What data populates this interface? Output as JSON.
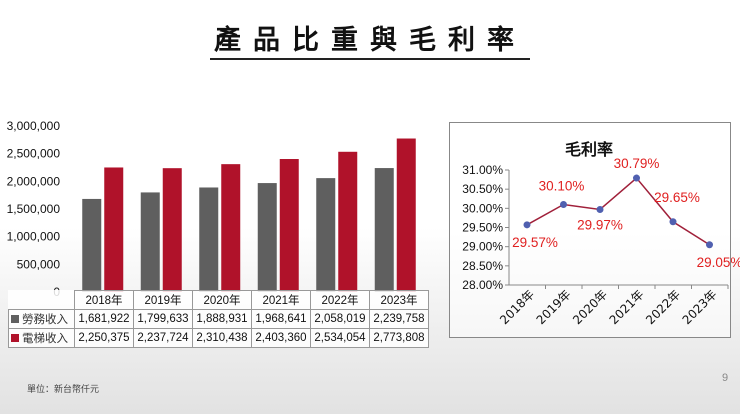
{
  "title": "產品比重與毛利率",
  "unit_note": "單位：新台幣仟元",
  "page_number": "9",
  "chart_data": [
    {
      "type": "bar",
      "categories": [
        "2018年",
        "2019年",
        "2020年",
        "2021年",
        "2022年",
        "2023年"
      ],
      "ylim": [
        0,
        3000000
      ],
      "yticks": [
        "0",
        "500,000",
        "1,000,000",
        "1,500,000",
        "2,000,000",
        "2,500,000",
        "3,000,000"
      ],
      "series": [
        {
          "name": "勞務收入",
          "color": "#5f5f5f",
          "values": [
            1681922,
            1799633,
            1888931,
            1968641,
            2058019,
            2239758
          ],
          "labels": [
            "1,681,922",
            "1,799,633",
            "1,888,931",
            "1,968,641",
            "2,058,019",
            "2,239,758"
          ]
        },
        {
          "name": "電梯收入",
          "color": "#b0122a",
          "values": [
            2250375,
            2237724,
            2310438,
            2403360,
            2534054,
            2773808
          ],
          "labels": [
            "2,250,375",
            "2,237,724",
            "2,310,438",
            "2,403,360",
            "2,534,054",
            "2,773,808"
          ]
        }
      ],
      "legend": "data-table"
    },
    {
      "type": "line",
      "title": "毛利率",
      "categories": [
        "2018年",
        "2019年",
        "2020年",
        "2021年",
        "2022年",
        "2023年"
      ],
      "values": [
        29.57,
        30.1,
        29.97,
        30.79,
        29.65,
        29.05
      ],
      "labels": [
        "29.57%",
        "30.10%",
        "29.97%",
        "30.79%",
        "29.65%",
        "29.05%"
      ],
      "ylim": [
        28.0,
        31.0
      ],
      "yticks": [
        "28.00%",
        "28.50%",
        "29.00%",
        "29.50%",
        "30.00%",
        "30.50%",
        "31.00%"
      ],
      "line_color": "#a0203a",
      "marker_color": "#5060b0",
      "label_color": "#e02020"
    }
  ]
}
